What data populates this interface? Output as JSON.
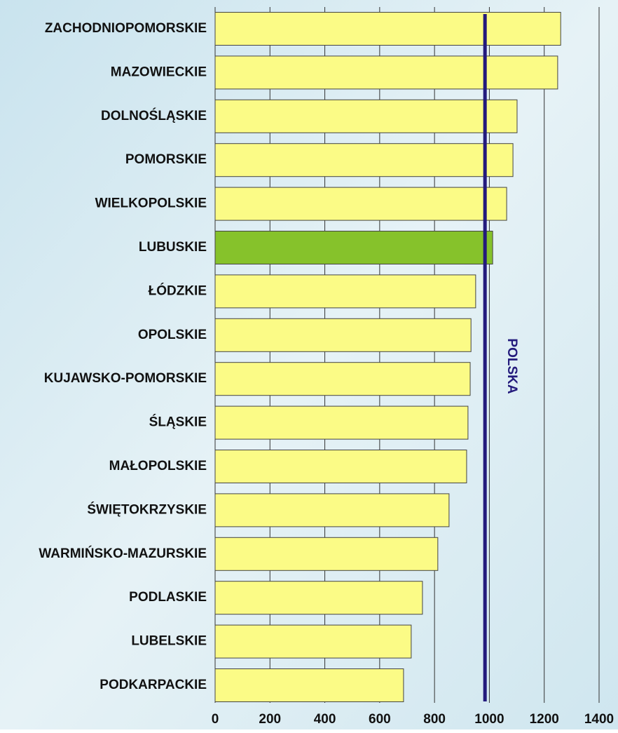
{
  "chart_data": {
    "type": "barh",
    "categories": [
      "ZACHODNIOPOMORSKIE",
      "MAZOWIECKIE",
      "DOLNOŚLĄSKIE",
      "POMORSKIE",
      "WIELKOPOLSKIE",
      "LUBUSKIE",
      "ŁÓDZKIE",
      "OPOLSKIE",
      "KUJAWSKO-POMORSKIE",
      "ŚLĄSKIE",
      "MAŁOPOLSKIE",
      "ŚWIĘTOKRZYSKIE",
      "WARMIŃSKO-MAZURSKIE",
      "PODLASKIE",
      "LUBELSKIE",
      "PODKARPACKIE"
    ],
    "values": [
      1260,
      1249,
      1101,
      1086,
      1063,
      1012,
      950,
      933,
      930,
      922,
      917,
      853,
      812,
      756,
      715,
      687
    ],
    "colors": [
      "#fbfb86",
      "#fbfb86",
      "#fbfb86",
      "#fbfb86",
      "#fbfb86",
      "#86c22b",
      "#fbfb86",
      "#fbfb86",
      "#fbfb86",
      "#fbfb86",
      "#fbfb86",
      "#fbfb86",
      "#fbfb86",
      "#fbfb86",
      "#fbfb86",
      "#fbfb86"
    ],
    "xlim": [
      0,
      1400
    ],
    "xticks": [
      0,
      200,
      400,
      600,
      800,
      1000,
      1200,
      1400
    ],
    "grid": true,
    "reference": {
      "value": 984,
      "label": "POLSKA",
      "color": "#231a7c"
    }
  }
}
